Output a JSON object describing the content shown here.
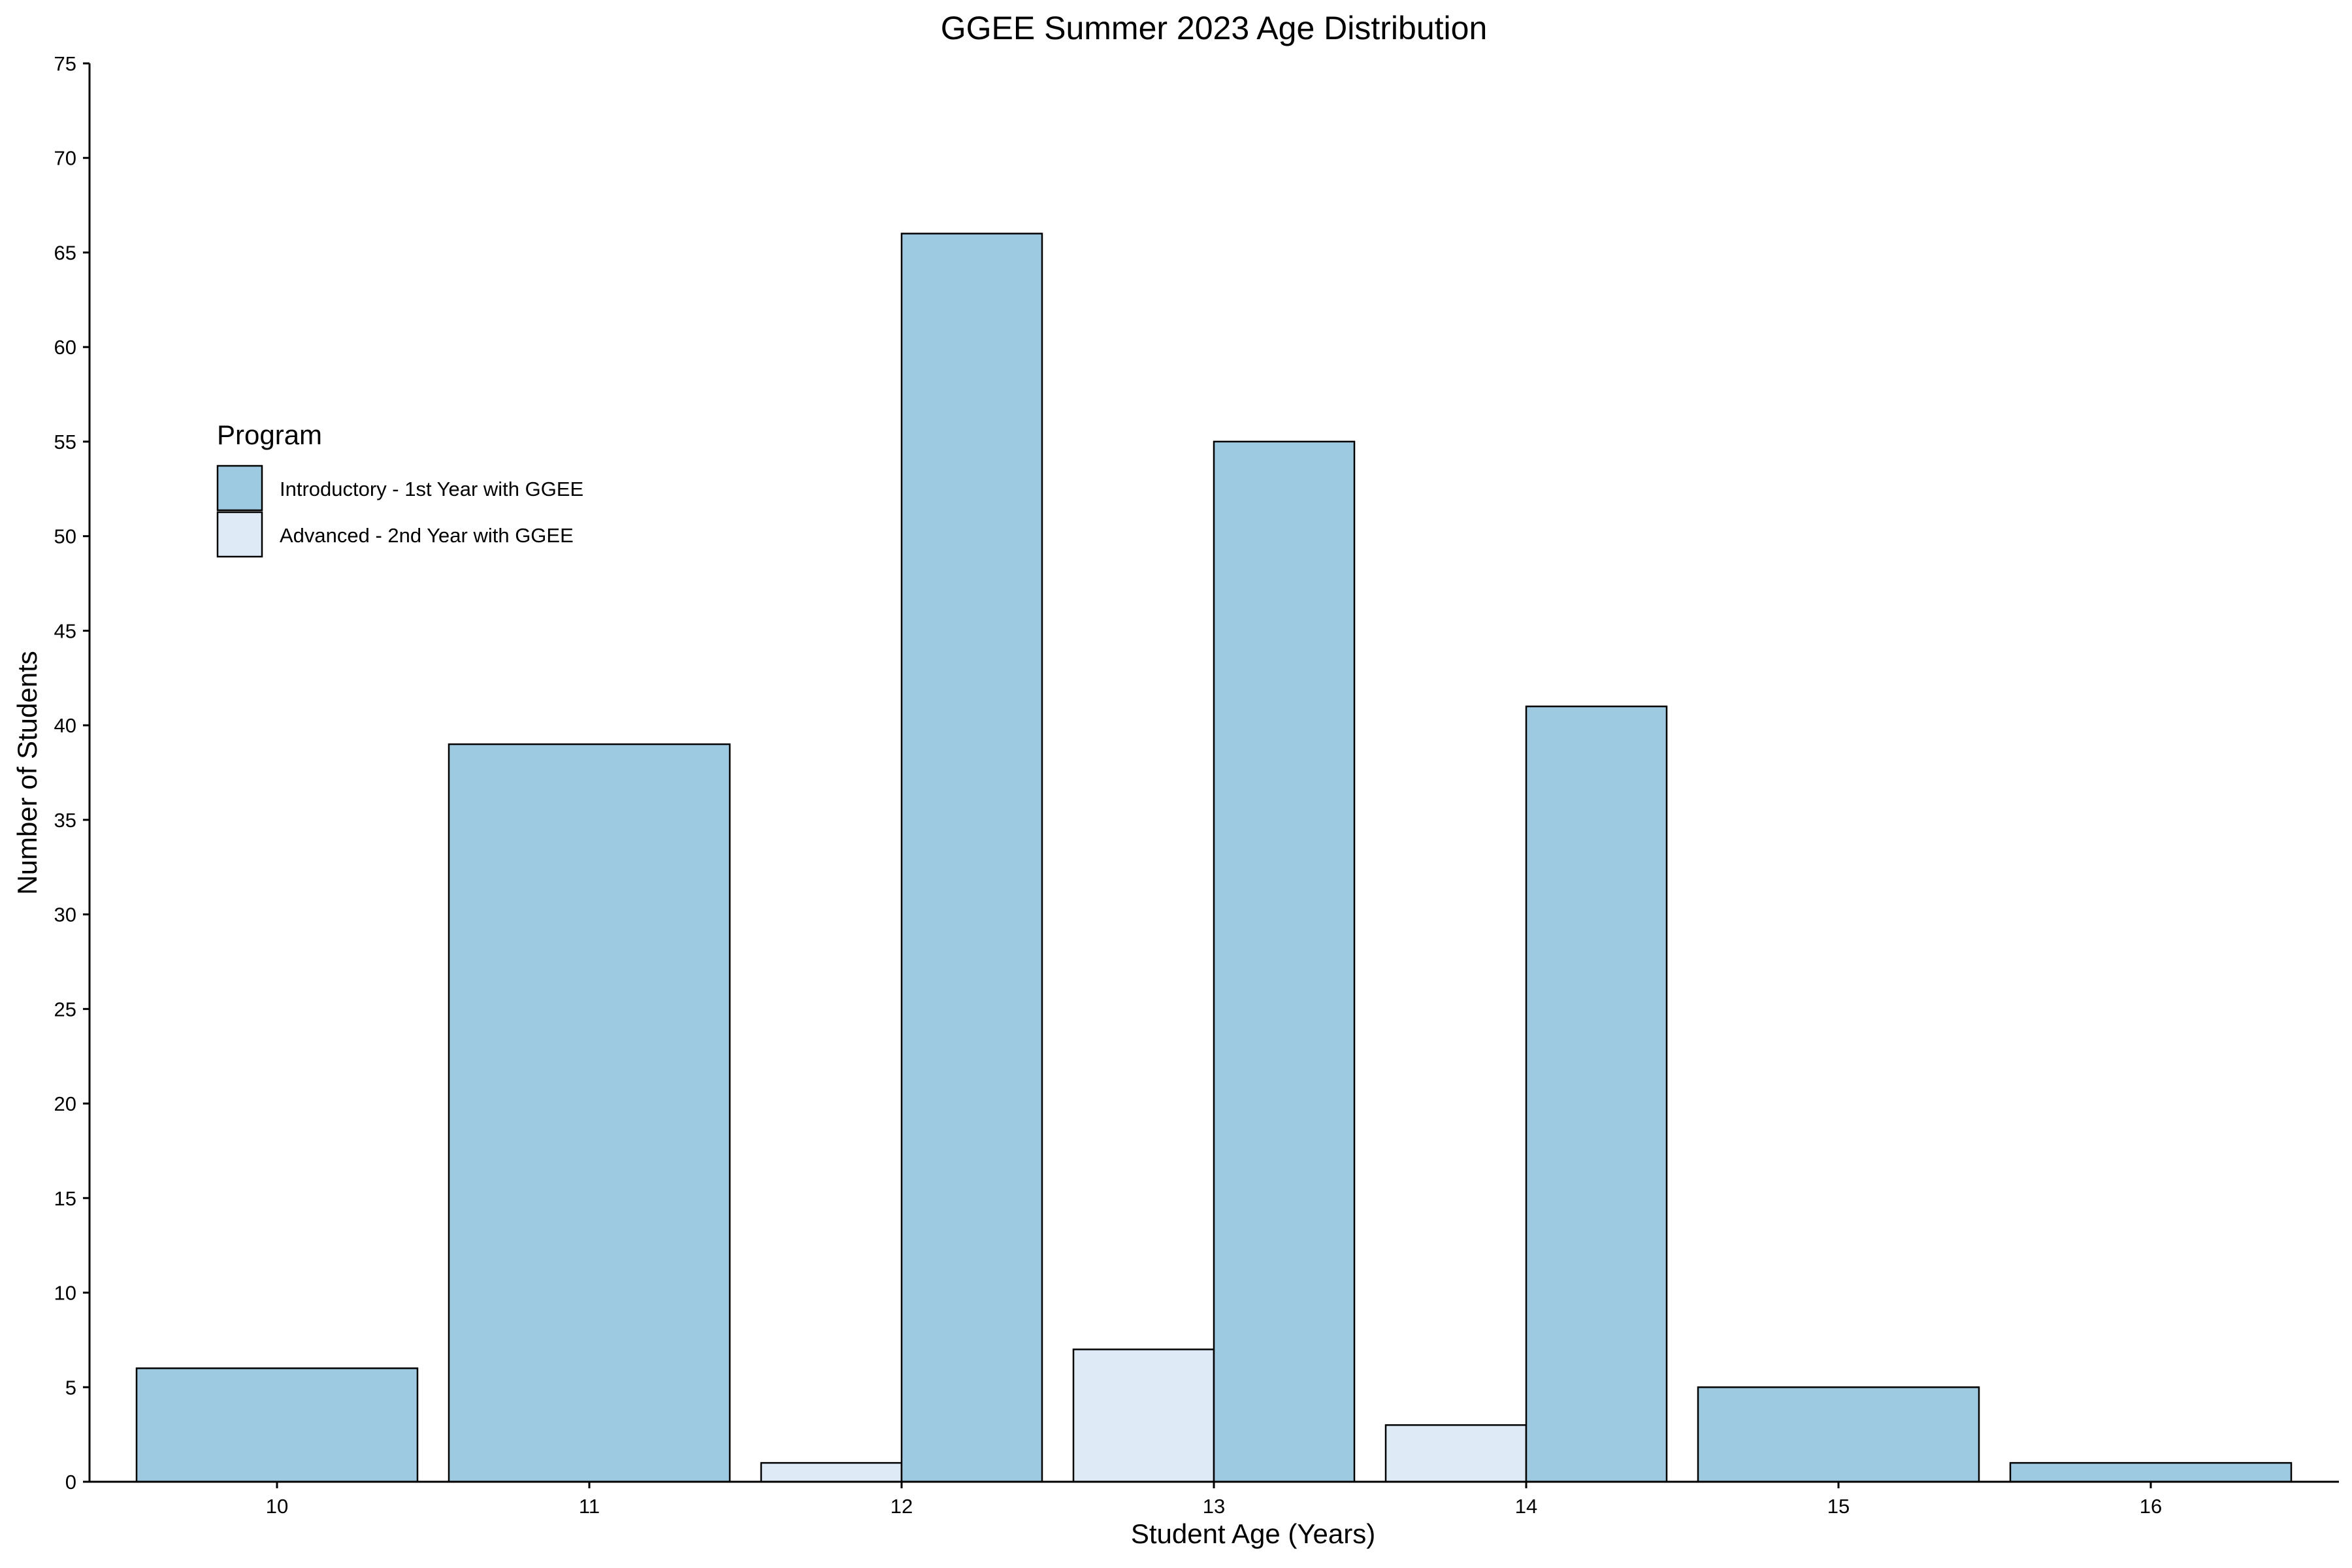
{
  "chart_data": {
    "type": "bar",
    "title": "GGEE Summer 2023 Age Distribution",
    "xlabel": "Student Age (Years)",
    "ylabel": "Number of Students",
    "categories": [
      "10",
      "11",
      "12",
      "13",
      "14",
      "15",
      "16"
    ],
    "series": [
      {
        "name": "Introductory - 1st Year with GGEE",
        "color": "#9ECAE1",
        "values": [
          6,
          39,
          66,
          55,
          41,
          5,
          1
        ]
      },
      {
        "name": "Advanced - 2nd Year with GGEE",
        "color": "#DEEBF7",
        "values": [
          0,
          0,
          1,
          7,
          3,
          0,
          0
        ]
      }
    ],
    "ylim": [
      0,
      75
    ],
    "yticks": [
      0,
      5,
      10,
      15,
      20,
      25,
      30,
      35,
      40,
      45,
      50,
      55,
      60,
      65,
      70,
      75
    ],
    "grid": false,
    "legend": {
      "title": "Program",
      "position": "top-left",
      "items": [
        "Introductory - 1st Year with GGEE",
        "Advanced - 2nd Year with GGEE"
      ]
    }
  }
}
